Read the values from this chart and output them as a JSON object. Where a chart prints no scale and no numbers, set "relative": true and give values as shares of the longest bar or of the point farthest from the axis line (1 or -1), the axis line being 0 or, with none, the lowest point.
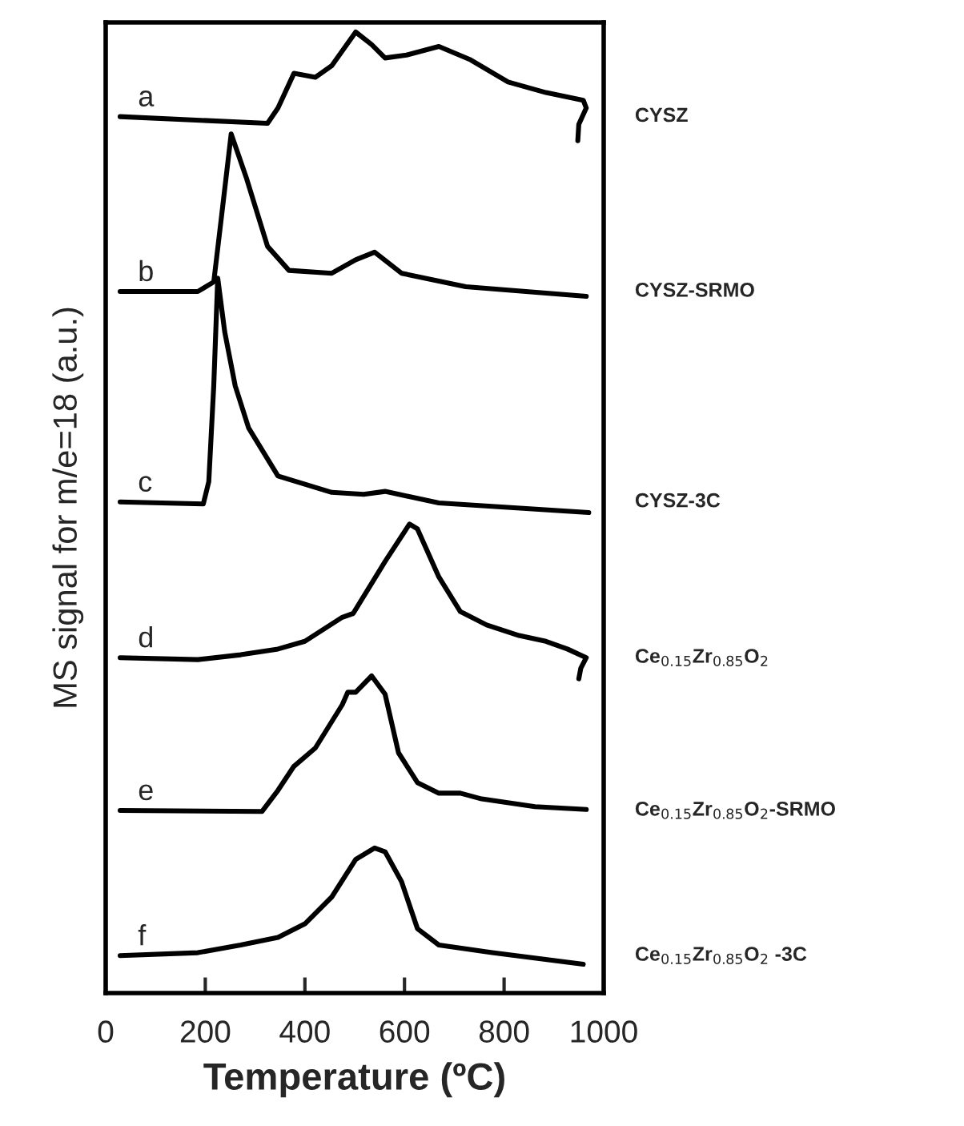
{
  "chart_data": {
    "type": "line",
    "relative": true,
    "xlabel": "Temperature (ºC)",
    "ylabel": "MS signal for m/e=18 (a.u.)",
    "xlim": [
      0,
      1000
    ],
    "xticks": [
      0,
      200,
      400,
      600,
      800,
      1000
    ],
    "grid": false,
    "legend": false,
    "marker": "none",
    "line_style": "solid",
    "annotations": [
      "a",
      "b",
      "c",
      "d",
      "e",
      "f"
    ],
    "series": [
      {
        "name": "CYSZ",
        "color": "#000000",
        "x": [
          29,
          325,
          346,
          378,
          421,
          454,
          502,
          534,
          561,
          604,
          669,
          733,
          808,
          884,
          959,
          965,
          950,
          948
        ],
        "values": [
          0.912,
          0.905,
          0.921,
          0.957,
          0.953,
          0.965,
          1.0,
          0.987,
          0.973,
          0.976,
          0.985,
          0.971,
          0.948,
          0.937,
          0.929,
          0.921,
          0.904,
          0.887
        ]
      },
      {
        "name": "CYSZ-SRMO",
        "color": "#000000",
        "x": [
          29,
          185,
          217,
          233,
          252,
          282,
          325,
          368,
          454,
          502,
          540,
          594,
          723,
          965
        ],
        "values": [
          0.73,
          0.73,
          0.74,
          0.81,
          0.894,
          0.849,
          0.777,
          0.752,
          0.749,
          0.763,
          0.771,
          0.749,
          0.735,
          0.725
        ]
      },
      {
        "name": "CYSZ-3C",
        "color": "#000000",
        "x": [
          29,
          196,
          207,
          217,
          225,
          239,
          260,
          287,
          346,
          454,
          518,
          561,
          669,
          970
        ],
        "values": [
          0.511,
          0.509,
          0.532,
          0.632,
          0.744,
          0.688,
          0.632,
          0.588,
          0.538,
          0.521,
          0.519,
          0.522,
          0.51,
          0.5
        ]
      },
      {
        "name": "Ce$_{0.15}$Zr$_{0.85}$O$_{2}$",
        "color": "#000000",
        "x": [
          29,
          185,
          271,
          346,
          400,
          475,
          497,
          561,
          610,
          626,
          669,
          712,
          765,
          830,
          884,
          927,
          965,
          954,
          950
        ],
        "values": [
          0.349,
          0.347,
          0.352,
          0.358,
          0.366,
          0.391,
          0.395,
          0.449,
          0.488,
          0.483,
          0.433,
          0.397,
          0.383,
          0.372,
          0.366,
          0.358,
          0.349,
          0.338,
          0.327
        ]
      },
      {
        "name": "Ce$_{0.15}$Zr$_{0.85}$O$_{2}$-SRMO",
        "color": "#000000",
        "x": [
          29,
          314,
          346,
          378,
          421,
          475,
          486,
          502,
          534,
          561,
          588,
          626,
          669,
          712,
          755,
          862,
          965
        ],
        "values": [
          0.19,
          0.189,
          0.211,
          0.236,
          0.255,
          0.3,
          0.313,
          0.313,
          0.33,
          0.311,
          0.25,
          0.219,
          0.208,
          0.208,
          0.202,
          0.194,
          0.191
        ]
      },
      {
        "name": "Ce$_{0.15}$Zr$_{0.85}$O$_{2}$ -3C",
        "color": "#000000",
        "x": [
          29,
          185,
          271,
          346,
          400,
          454,
          502,
          540,
          561,
          594,
          626,
          669,
          776,
          959
        ],
        "values": [
          0.039,
          0.042,
          0.05,
          0.058,
          0.072,
          0.1,
          0.139,
          0.151,
          0.147,
          0.116,
          0.067,
          0.05,
          0.042,
          0.03
        ]
      }
    ]
  }
}
